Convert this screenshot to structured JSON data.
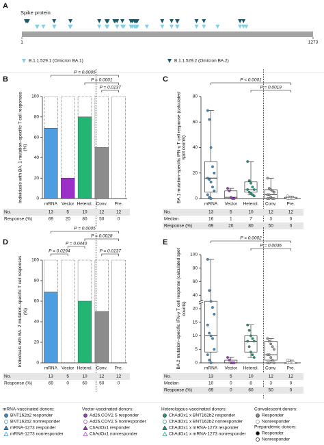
{
  "chart_data": [
    {
      "type": "mutation-map",
      "panel": "A",
      "title": "Spike protein",
      "xlim": [
        1,
        1273
      ],
      "xticks": [
        1,
        1273
      ],
      "series": [
        {
          "name": "B.1.1.529.1 (Omicron BA.1)",
          "color": "#86cde3",
          "x": [
            67,
            69,
            95,
            142,
            143,
            211,
            212,
            214,
            339,
            371,
            373,
            375,
            417,
            440,
            446,
            477,
            478,
            484,
            493,
            496,
            498,
            501,
            505,
            547,
            614,
            655,
            679,
            681,
            764,
            796,
            856,
            954,
            969,
            981
          ]
        },
        {
          "name": "B.1.1.529.2 (Omicron BA.2)",
          "color": "#1e5866",
          "x": [
            19,
            24,
            27,
            142,
            213,
            339,
            371,
            373,
            375,
            376,
            405,
            408,
            417,
            440,
            477,
            478,
            484,
            493,
            498,
            501,
            505,
            614,
            655,
            679,
            681,
            764,
            796,
            954,
            969
          ]
        }
      ]
    },
    {
      "type": "bar",
      "panel": "B",
      "ylabel": "Individuals with BA. 1 mutation–specific T cell responses (%)",
      "categories": [
        "mRNA",
        "Vector",
        "Heterol.",
        "Conv.",
        "Pre."
      ],
      "values": [
        69,
        20,
        80,
        50,
        0
      ],
      "colors": [
        "#4d9de0",
        "#9b30c8",
        "#22b573",
        "#8c8c8c",
        "#ffffff"
      ],
      "ylim": [
        0,
        100
      ],
      "yticks": [
        0,
        20,
        40,
        60,
        80,
        100
      ],
      "divider_after": "Heterol.",
      "comparisons": [
        {
          "label": "P = 0.0005",
          "between": [
            "mRNA",
            "Pre."
          ]
        },
        {
          "label": "P = 0.0001",
          "between": [
            "Heterol.",
            "Pre."
          ]
        },
        {
          "label": "P = 0.0137",
          "between": [
            "Conv.",
            "Pre."
          ]
        }
      ],
      "table": {
        "count_label": "No.",
        "counts": [
          13,
          5,
          10,
          12,
          12
        ],
        "response_label": "Response (%)"
      }
    },
    {
      "type": "box",
      "panel": "C",
      "ylabel": "BA.1 mutation–specific IFN-γ T cell response (calculated spot counts)",
      "categories": [
        "mRNA",
        "Vector",
        "Heterol.",
        "Conv.",
        "Pre."
      ],
      "colors": [
        "#3a8fd1",
        "#9b3fb5",
        "#1c9c7c",
        "#9a9a9a",
        "#ffffff"
      ],
      "min": [
        0,
        0,
        3,
        0,
        0
      ],
      "q1": [
        5,
        0,
        5,
        0,
        0
      ],
      "median": [
        16,
        1,
        7,
        3,
        0
      ],
      "q3": [
        29,
        6,
        13,
        7,
        1
      ],
      "max": [
        69,
        8,
        29,
        16,
        2
      ],
      "points": [
        [
          69,
          62,
          40,
          25,
          20,
          16,
          15,
          13,
          9,
          6,
          3,
          1,
          0
        ],
        [
          8,
          6,
          1,
          0,
          0
        ],
        [
          29,
          14,
          12,
          9,
          7,
          7,
          5,
          4,
          3,
          2
        ],
        [
          16,
          8,
          7,
          6,
          5,
          3,
          3,
          1,
          0,
          0,
          0,
          0
        ],
        [
          2,
          1,
          1,
          1,
          0,
          0,
          0,
          0,
          0,
          0,
          0,
          0
        ]
      ],
      "ylim": [
        0,
        80
      ],
      "yticks": [
        0,
        20,
        40,
        60,
        80
      ],
      "divider_after": "Heterol.",
      "comparisons": [
        {
          "label": "P < 0.0001",
          "between": [
            "mRNA",
            "Pre."
          ]
        },
        {
          "label": "P = 0.0019",
          "between": [
            "Heterol.",
            "Pre."
          ]
        }
      ],
      "table": {
        "count_label": "No.",
        "counts": [
          13,
          5,
          10,
          12,
          12
        ],
        "median_label": "Median",
        "response_label": "Response (%)",
        "responses": [
          69,
          20,
          80,
          50,
          0
        ]
      }
    },
    {
      "type": "bar",
      "panel": "D",
      "ylabel": "Individuals with BA. 2 mutation–specific T cell responses (%)",
      "categories": [
        "mRNA",
        "Vector",
        "Heterol.",
        "Conv.",
        "Pre."
      ],
      "values": [
        69,
        0,
        60,
        50,
        0
      ],
      "colors": [
        "#4d9de0",
        "#9b30c8",
        "#22b573",
        "#8c8c8c",
        "#ffffff"
      ],
      "ylim": [
        0,
        100
      ],
      "yticks": [
        0,
        20,
        40,
        60,
        80,
        100
      ],
      "divider_after": "Heterol.",
      "comparisons": [
        {
          "label": "P = 0.0005",
          "between": [
            "mRNA",
            "Pre."
          ]
        },
        {
          "label": "P = 0.0028",
          "between": [
            "Heterol.",
            "Pre."
          ]
        },
        {
          "label": "P = 0.0440",
          "between": [
            "Vector",
            "Heterol."
          ]
        },
        {
          "label": "P = 0.0294",
          "between": [
            "mRNA",
            "Vector"
          ]
        },
        {
          "label": "P = 0.0137",
          "between": [
            "Conv.",
            "Pre."
          ]
        }
      ],
      "table": {
        "count_label": "No.",
        "counts": [
          13,
          5,
          10,
          12,
          12
        ],
        "response_label": "Response (%)"
      }
    },
    {
      "type": "box",
      "panel": "E",
      "ylabel": "BA.2 mutation–specific IFN-γ T cell response (calculated spot counts)",
      "categories": [
        "mRNA",
        "Vector",
        "Heterol.",
        "Conv.",
        "Pre."
      ],
      "colors": [
        "#3a8fd1",
        "#9b3fb5",
        "#1c9c7c",
        "#9a9a9a",
        "#ffffff"
      ],
      "min": [
        0,
        0,
        2,
        0,
        0
      ],
      "q1": [
        4,
        0,
        4,
        1,
        0
      ],
      "median": [
        10,
        0,
        8,
        3,
        0
      ],
      "q3": [
        31,
        1,
        10,
        8,
        0
      ],
      "max": [
        93,
        2,
        14,
        9,
        1
      ],
      "points": [
        [
          93,
          47,
          31,
          22,
          18,
          14,
          11,
          10,
          9,
          5,
          3,
          1,
          0
        ],
        [
          2,
          1,
          0,
          0,
          0
        ],
        [
          14,
          12,
          10,
          9,
          8,
          8,
          6,
          4,
          3,
          2
        ],
        [
          9,
          8,
          7,
          6,
          5,
          3,
          3,
          2,
          1,
          0,
          0,
          0
        ],
        [
          1,
          1,
          0,
          0,
          0,
          0,
          0,
          0,
          0,
          0,
          0,
          0
        ]
      ],
      "ylim": [
        0,
        100
      ],
      "yticks": [
        0,
        5,
        10,
        15,
        20,
        40,
        60,
        80,
        100
      ],
      "axis_break": true,
      "divider_after": "Heterol.",
      "comparisons": [
        {
          "label": "P = 0.0002",
          "between": [
            "mRNA",
            "Pre."
          ]
        },
        {
          "label": "P = 0.0036",
          "between": [
            "Heterol.",
            "Pre."
          ]
        }
      ],
      "table": {
        "count_label": "No.",
        "counts": [
          13,
          5,
          10,
          12,
          12
        ],
        "median_label": "Median",
        "response_label": "Response (%)",
        "responses": [
          69,
          0,
          60,
          50,
          0
        ]
      }
    }
  ],
  "legend": {
    "groups": [
      {
        "title": "mRNA-vaccinated donors:",
        "items": [
          {
            "label": "BNT162b2 responder",
            "marker": "circle",
            "color": "#3a8fd1",
            "filled": true
          },
          {
            "label": "BNT162b2 nonresponder",
            "marker": "circle",
            "color": "#3a8fd1",
            "filled": false
          },
          {
            "label": "mRNA-1273 responder",
            "marker": "triangle",
            "color": "#3a8fd1",
            "filled": true
          },
          {
            "label": "mRNA-1273 nonresponder",
            "marker": "triangle",
            "color": "#3a8fd1",
            "filled": false
          }
        ]
      },
      {
        "title": "Vector-vaccinated donors:",
        "items": [
          {
            "label": "Ad26.COV2.S responder",
            "marker": "circle",
            "color": "#9b3fb5",
            "filled": true
          },
          {
            "label": "Ad26.COV2.S nonresponder",
            "marker": "circle",
            "color": "#9b3fb5",
            "filled": false
          },
          {
            "label": "ChAdOx1 responder",
            "marker": "triangle",
            "color": "#9b3fb5",
            "filled": true
          },
          {
            "label": "ChAdOx1 nonresponder",
            "marker": "triangle",
            "color": "#9b3fb5",
            "filled": false
          }
        ]
      },
      {
        "title": "Heterologous-vaccinated donors:",
        "items": [
          {
            "label": "ChAdOx1 x BNT162b2 responder",
            "marker": "circle",
            "color": "#1c9c7c",
            "filled": true
          },
          {
            "label": "ChAdOx1 x BNT162b2 nonresponder",
            "marker": "circle",
            "color": "#1c9c7c",
            "filled": false
          },
          {
            "label": "ChAdOx1 x mRNA-1273 responder",
            "marker": "triangle",
            "color": "#1c9c7c",
            "filled": true
          },
          {
            "label": "ChAdOx1 x mRNA-1273 nonresponder",
            "marker": "triangle",
            "color": "#1c9c7c",
            "filled": false
          }
        ]
      },
      {
        "title": "Convalescent donors:",
        "items": [
          {
            "label": "Responder",
            "marker": "circle",
            "color": "#8c8c8c",
            "filled": true
          },
          {
            "label": "Nonresponder",
            "marker": "circle",
            "color": "#8c8c8c",
            "filled": false
          }
        ]
      },
      {
        "title": "Prepandemic donors:",
        "items": [
          {
            "label": "Responder",
            "marker": "circle",
            "color": "#111111",
            "filled": true
          },
          {
            "label": "Nonresponder",
            "marker": "circle",
            "color": "#111111",
            "filled": false
          }
        ]
      }
    ]
  }
}
